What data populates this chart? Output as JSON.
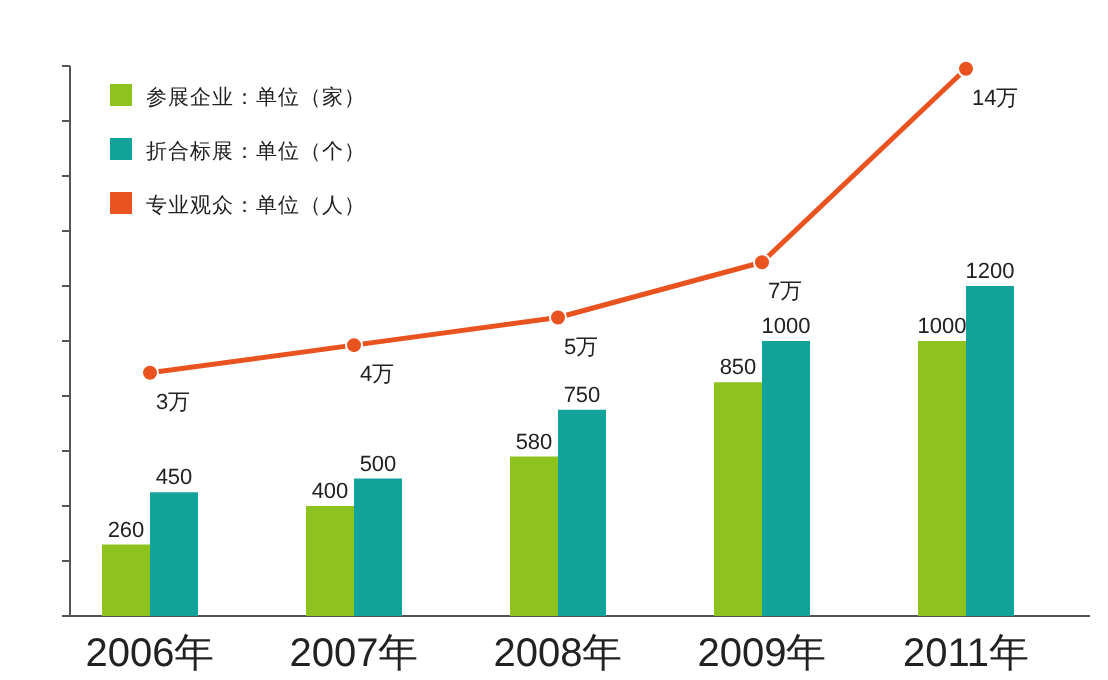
{
  "chart_data": {
    "type": "bar",
    "categories": [
      "2006年",
      "2007年",
      "2008年",
      "2009年",
      "2011年"
    ],
    "ylim": [
      0,
      2000
    ],
    "yticks": [
      {
        "value": 0,
        "label": null
      },
      {
        "value": 200,
        "label": null
      },
      {
        "value": 400,
        "label": null
      },
      {
        "value": 600,
        "label": null
      },
      {
        "value": 800,
        "label": null
      },
      {
        "value": 1000,
        "label": null
      },
      {
        "value": 1200,
        "label": null
      },
      {
        "value": 1400,
        "label": null
      },
      {
        "value": 1600,
        "label": null
      },
      {
        "value": 1800,
        "label": null
      },
      {
        "value": 2000,
        "label": null
      }
    ],
    "y2lim": [
      -5.8,
      14.1
    ],
    "legend": "top left",
    "data_labels": true,
    "marker": "circle",
    "series": [
      {
        "name": "参展企业：单位（家）",
        "color": "#8dc21f",
        "values": [
          260,
          400,
          580,
          850,
          1000
        ]
      },
      {
        "name": "折合标展：单位（个）",
        "color": "#12a39a",
        "values": [
          450,
          500,
          750,
          1000,
          1200
        ]
      },
      {
        "name": "专业观众：单位（人）",
        "type": "line",
        "axis": "y2",
        "color": "#e8531f",
        "values": [
          3,
          4,
          5,
          7,
          14
        ],
        "value_labels": [
          "3万",
          "4万",
          "5万",
          "7万",
          "14万"
        ]
      }
    ]
  }
}
